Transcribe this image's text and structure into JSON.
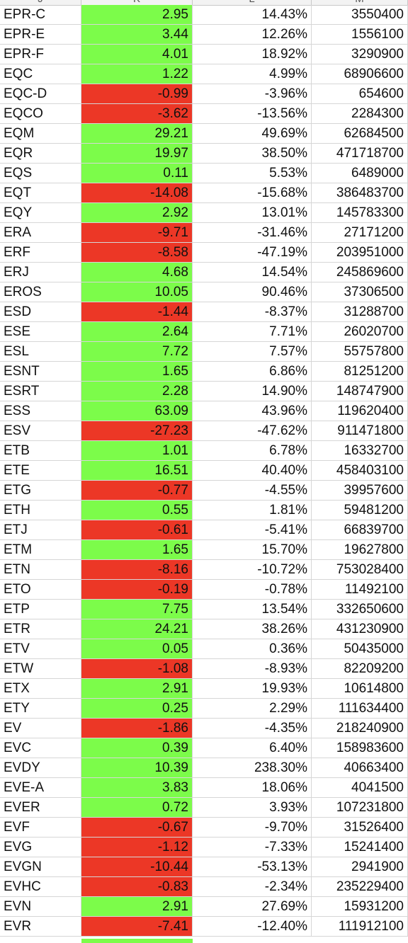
{
  "columns": [
    "J",
    "K",
    "L",
    "M"
  ],
  "colors": {
    "positive": "#7cfc4a",
    "negative": "#ec3726"
  },
  "rows": [
    {
      "ticker": "EPR-C",
      "change": "2.95",
      "pct": "14.43%",
      "volume": "3550400",
      "sign": "pos"
    },
    {
      "ticker": "EPR-E",
      "change": "3.44",
      "pct": "12.26%",
      "volume": "1556100",
      "sign": "pos"
    },
    {
      "ticker": "EPR-F",
      "change": "4.01",
      "pct": "18.92%",
      "volume": "3290900",
      "sign": "pos"
    },
    {
      "ticker": "EQC",
      "change": "1.22",
      "pct": "4.99%",
      "volume": "68906600",
      "sign": "pos"
    },
    {
      "ticker": "EQC-D",
      "change": "-0.99",
      "pct": "-3.96%",
      "volume": "654600",
      "sign": "neg"
    },
    {
      "ticker": "EQCO",
      "change": "-3.62",
      "pct": "-13.56%",
      "volume": "2284300",
      "sign": "neg"
    },
    {
      "ticker": "EQM",
      "change": "29.21",
      "pct": "49.69%",
      "volume": "62684500",
      "sign": "pos"
    },
    {
      "ticker": "EQR",
      "change": "19.97",
      "pct": "38.50%",
      "volume": "471718700",
      "sign": "pos"
    },
    {
      "ticker": "EQS",
      "change": "0.11",
      "pct": "5.53%",
      "volume": "6489000",
      "sign": "pos"
    },
    {
      "ticker": "EQT",
      "change": "-14.08",
      "pct": "-15.68%",
      "volume": "386483700",
      "sign": "neg"
    },
    {
      "ticker": "EQY",
      "change": "2.92",
      "pct": "13.01%",
      "volume": "145783300",
      "sign": "pos"
    },
    {
      "ticker": "ERA",
      "change": "-9.71",
      "pct": "-31.46%",
      "volume": "27171200",
      "sign": "neg"
    },
    {
      "ticker": "ERF",
      "change": "-8.58",
      "pct": "-47.19%",
      "volume": "203951000",
      "sign": "neg"
    },
    {
      "ticker": "ERJ",
      "change": "4.68",
      "pct": "14.54%",
      "volume": "245869600",
      "sign": "pos"
    },
    {
      "ticker": "EROS",
      "change": "10.05",
      "pct": "90.46%",
      "volume": "37306500",
      "sign": "pos"
    },
    {
      "ticker": "ESD",
      "change": "-1.44",
      "pct": "-8.37%",
      "volume": "31288700",
      "sign": "neg"
    },
    {
      "ticker": "ESE",
      "change": "2.64",
      "pct": "7.71%",
      "volume": "26020700",
      "sign": "pos"
    },
    {
      "ticker": "ESL",
      "change": "7.72",
      "pct": "7.57%",
      "volume": "55757800",
      "sign": "pos"
    },
    {
      "ticker": "ESNT",
      "change": "1.65",
      "pct": "6.86%",
      "volume": "81251200",
      "sign": "pos"
    },
    {
      "ticker": "ESRT",
      "change": "2.28",
      "pct": "14.90%",
      "volume": "148747900",
      "sign": "pos"
    },
    {
      "ticker": "ESS",
      "change": "63.09",
      "pct": "43.96%",
      "volume": "119620400",
      "sign": "pos"
    },
    {
      "ticker": "ESV",
      "change": "-27.23",
      "pct": "-47.62%",
      "volume": "911471800",
      "sign": "neg"
    },
    {
      "ticker": "ETB",
      "change": "1.01",
      "pct": "6.78%",
      "volume": "16332700",
      "sign": "pos"
    },
    {
      "ticker": "ETE",
      "change": "16.51",
      "pct": "40.40%",
      "volume": "458403100",
      "sign": "pos"
    },
    {
      "ticker": "ETG",
      "change": "-0.77",
      "pct": "-4.55%",
      "volume": "39957600",
      "sign": "neg"
    },
    {
      "ticker": "ETH",
      "change": "0.55",
      "pct": "1.81%",
      "volume": "59481200",
      "sign": "pos"
    },
    {
      "ticker": "ETJ",
      "change": "-0.61",
      "pct": "-5.41%",
      "volume": "66839700",
      "sign": "neg"
    },
    {
      "ticker": "ETM",
      "change": "1.65",
      "pct": "15.70%",
      "volume": "19627800",
      "sign": "pos"
    },
    {
      "ticker": "ETN",
      "change": "-8.16",
      "pct": "-10.72%",
      "volume": "753028400",
      "sign": "neg"
    },
    {
      "ticker": "ETO",
      "change": "-0.19",
      "pct": "-0.78%",
      "volume": "11492100",
      "sign": "neg"
    },
    {
      "ticker": "ETP",
      "change": "7.75",
      "pct": "13.54%",
      "volume": "332650600",
      "sign": "pos"
    },
    {
      "ticker": "ETR",
      "change": "24.21",
      "pct": "38.26%",
      "volume": "431230900",
      "sign": "pos"
    },
    {
      "ticker": "ETV",
      "change": "0.05",
      "pct": "0.36%",
      "volume": "50435000",
      "sign": "pos"
    },
    {
      "ticker": "ETW",
      "change": "-1.08",
      "pct": "-8.93%",
      "volume": "82209200",
      "sign": "neg"
    },
    {
      "ticker": "ETX",
      "change": "2.91",
      "pct": "19.93%",
      "volume": "10614800",
      "sign": "pos"
    },
    {
      "ticker": "ETY",
      "change": "0.25",
      "pct": "2.29%",
      "volume": "111634400",
      "sign": "pos"
    },
    {
      "ticker": "EV",
      "change": "-1.86",
      "pct": "-4.35%",
      "volume": "218240900",
      "sign": "neg"
    },
    {
      "ticker": "EVC",
      "change": "0.39",
      "pct": "6.40%",
      "volume": "158983600",
      "sign": "pos"
    },
    {
      "ticker": "EVDY",
      "change": "10.39",
      "pct": "238.30%",
      "volume": "40663400",
      "sign": "pos"
    },
    {
      "ticker": "EVE-A",
      "change": "3.83",
      "pct": "18.06%",
      "volume": "4041500",
      "sign": "pos"
    },
    {
      "ticker": "EVER",
      "change": "0.72",
      "pct": "3.93%",
      "volume": "107231800",
      "sign": "pos"
    },
    {
      "ticker": "EVF",
      "change": "-0.67",
      "pct": "-9.70%",
      "volume": "31526400",
      "sign": "neg"
    },
    {
      "ticker": "EVG",
      "change": "-1.12",
      "pct": "-7.33%",
      "volume": "15241400",
      "sign": "neg"
    },
    {
      "ticker": "EVGN",
      "change": "-10.44",
      "pct": "-53.13%",
      "volume": "2941900",
      "sign": "neg"
    },
    {
      "ticker": "EVHC",
      "change": "-0.83",
      "pct": "-2.34%",
      "volume": "235229400",
      "sign": "neg"
    },
    {
      "ticker": "EVN",
      "change": "2.91",
      "pct": "27.69%",
      "volume": "15931200",
      "sign": "pos"
    },
    {
      "ticker": "EVR",
      "change": "-7.41",
      "pct": "-12.40%",
      "volume": "111912100",
      "sign": "neg"
    }
  ]
}
